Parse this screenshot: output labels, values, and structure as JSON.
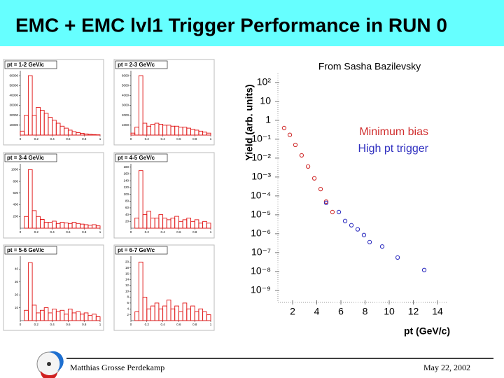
{
  "title": "EMC + EMC lvl1 Trigger Performance in RUN 0",
  "source_note": "From Sasha Bazilevsky",
  "footer": {
    "author": "Matthias Grosse Perdekamp",
    "date": "May 22, 2002"
  },
  "chart_data": [
    {
      "type": "histogram",
      "title": "pt = 1-2 GeV/c",
      "color": "#e01010",
      "bins": [
        0,
        0.05,
        0.1,
        0.15,
        0.2,
        0.25,
        0.3,
        0.35,
        0.4,
        0.45,
        0.5,
        0.55,
        0.6,
        0.65,
        0.7,
        0.75,
        0.8,
        0.85,
        0.9,
        0.95,
        1
      ],
      "values": [
        4000,
        20000,
        60000,
        20000,
        28000,
        25000,
        22000,
        18000,
        15000,
        12000,
        9000,
        7000,
        5000,
        3500,
        2500,
        1800,
        1200,
        800,
        500,
        300
      ],
      "xlim": [
        0,
        1
      ],
      "xticks": [
        0,
        0.2,
        0.4,
        0.6,
        0.8,
        1
      ],
      "ylim": [
        0,
        65000
      ],
      "yticks": [
        10000,
        20000,
        30000,
        40000,
        50000,
        60000
      ]
    },
    {
      "type": "histogram",
      "title": "pt = 2-3 GeV/c",
      "color": "#e01010",
      "bins": [
        0,
        0.05,
        0.1,
        0.15,
        0.2,
        0.25,
        0.3,
        0.35,
        0.4,
        0.45,
        0.5,
        0.55,
        0.6,
        0.65,
        0.7,
        0.75,
        0.8,
        0.85,
        0.9,
        0.95,
        1
      ],
      "values": [
        200,
        800,
        6000,
        1200,
        900,
        1100,
        1200,
        1100,
        1000,
        1000,
        900,
        900,
        800,
        800,
        700,
        600,
        500,
        400,
        300,
        200
      ],
      "xlim": [
        0,
        1
      ],
      "xticks": [
        0,
        0.2,
        0.4,
        0.6,
        0.8,
        1
      ],
      "ylim": [
        0,
        6500
      ],
      "yticks": [
        1000,
        2000,
        3000,
        4000,
        5000,
        6000
      ]
    },
    {
      "type": "histogram",
      "title": "pt = 3-4 GeV/c",
      "color": "#e01010",
      "bins": [
        0,
        0.05,
        0.1,
        0.15,
        0.2,
        0.25,
        0.3,
        0.35,
        0.4,
        0.45,
        0.5,
        0.55,
        0.6,
        0.65,
        0.7,
        0.75,
        0.8,
        0.85,
        0.9,
        0.95,
        1
      ],
      "values": [
        0,
        200,
        1000,
        300,
        200,
        150,
        100,
        100,
        120,
        80,
        100,
        90,
        80,
        100,
        80,
        70,
        60,
        50,
        60,
        40
      ],
      "xlim": [
        0,
        1
      ],
      "xticks": [
        0,
        0.2,
        0.4,
        0.6,
        0.8,
        1
      ],
      "ylim": [
        0,
        1100
      ],
      "yticks": [
        200,
        400,
        600,
        800,
        1000
      ]
    },
    {
      "type": "histogram",
      "title": "pt = 4-5 GeV/c",
      "color": "#e01010",
      "bins": [
        0,
        0.05,
        0.1,
        0.15,
        0.2,
        0.25,
        0.3,
        0.35,
        0.4,
        0.45,
        0.5,
        0.55,
        0.6,
        0.65,
        0.7,
        0.75,
        0.8,
        0.85,
        0.9,
        0.95,
        1
      ],
      "values": [
        0,
        30,
        170,
        40,
        50,
        30,
        30,
        40,
        30,
        25,
        30,
        35,
        20,
        25,
        30,
        20,
        25,
        15,
        20,
        15
      ],
      "xlim": [
        0,
        1
      ],
      "xticks": [
        0,
        0.2,
        0.4,
        0.6,
        0.8,
        1
      ],
      "ylim": [
        0,
        190
      ],
      "yticks": [
        20,
        40,
        60,
        80,
        100,
        120,
        140,
        160,
        180
      ]
    },
    {
      "type": "histogram",
      "title": "pt = 5-6 GeV/c",
      "color": "#e01010",
      "bins": [
        0,
        0.05,
        0.1,
        0.15,
        0.2,
        0.25,
        0.3,
        0.35,
        0.4,
        0.45,
        0.5,
        0.55,
        0.6,
        0.65,
        0.7,
        0.75,
        0.8,
        0.85,
        0.9,
        0.95,
        1
      ],
      "values": [
        0,
        8,
        45,
        12,
        6,
        8,
        10,
        6,
        9,
        7,
        8,
        5,
        9,
        6,
        7,
        5,
        6,
        4,
        5,
        3
      ],
      "xlim": [
        0,
        1
      ],
      "xticks": [
        0,
        0.2,
        0.4,
        0.6,
        0.8,
        1
      ],
      "ylim": [
        0,
        50
      ],
      "yticks": [
        10,
        20,
        30,
        40
      ]
    },
    {
      "type": "histogram",
      "title": "pt = 6-7 GeV/c",
      "color": "#e01010",
      "bins": [
        0,
        0.05,
        0.1,
        0.15,
        0.2,
        0.25,
        0.3,
        0.35,
        0.4,
        0.45,
        0.5,
        0.55,
        0.6,
        0.65,
        0.7,
        0.75,
        0.8,
        0.85,
        0.9,
        0.95,
        1
      ],
      "values": [
        0,
        3,
        20,
        8,
        4,
        5,
        6,
        4,
        5,
        7,
        4,
        5,
        3,
        6,
        4,
        5,
        3,
        4,
        3,
        2
      ],
      "xlim": [
        0,
        1
      ],
      "xticks": [
        0,
        0.2,
        0.4,
        0.6,
        0.8,
        1
      ],
      "ylim": [
        0,
        22
      ],
      "yticks": [
        2,
        4,
        6,
        8,
        10,
        12,
        14,
        16,
        18,
        20
      ]
    },
    {
      "type": "scatter",
      "x_label": "pt (GeV/c)",
      "y_label": "Yield (arb. units)",
      "log_y": true,
      "xlim": [
        1,
        15
      ],
      "xticks": [
        2,
        4,
        6,
        8,
        10,
        12,
        14
      ],
      "ylim": [
        3e-10,
        300
      ],
      "yticks": [
        {
          "value": 100,
          "label": "10²"
        },
        10,
        1,
        {
          "value": 0.1,
          "label": "10⁻¹"
        },
        {
          "value": 0.01,
          "label": "10⁻²"
        },
        {
          "value": 0.001,
          "label": "10⁻³"
        },
        {
          "value": 0.0001,
          "label": "10⁻⁴"
        },
        {
          "value": 1e-05,
          "label": "10⁻⁵"
        },
        {
          "value": 1e-06,
          "label": "10⁻⁶"
        },
        {
          "value": 1e-07,
          "label": "10⁻⁷"
        },
        {
          "value": 1e-08,
          "label": "10⁻⁸"
        },
        {
          "value": 1e-09,
          "label": "10⁻⁹"
        }
      ],
      "series": [
        {
          "name": "Minimum bias",
          "color": "#d03030",
          "x": [
            1.3,
            1.77,
            2.23,
            2.75,
            3.28,
            3.8,
            4.32,
            4.78,
            5.3
          ],
          "values": [
            0.39,
            0.17,
            0.05,
            0.014,
            0.0036,
            0.00085,
            0.00023,
            5e-05,
            1.4e-05
          ]
        },
        {
          "name": "High pt trigger",
          "color": "#3030c0",
          "x": [
            4.78,
            5.83,
            6.35,
            6.87,
            7.39,
            7.91,
            8.38,
            9.42,
            10.7,
            12.9
          ],
          "values": [
            4.3e-05,
            1.4e-05,
            4.7e-06,
            2.8e-06,
            1.7e-06,
            8.5e-07,
            3.6e-07,
            2.1e-07,
            5.5e-08,
            1.2e-08
          ]
        }
      ]
    }
  ]
}
